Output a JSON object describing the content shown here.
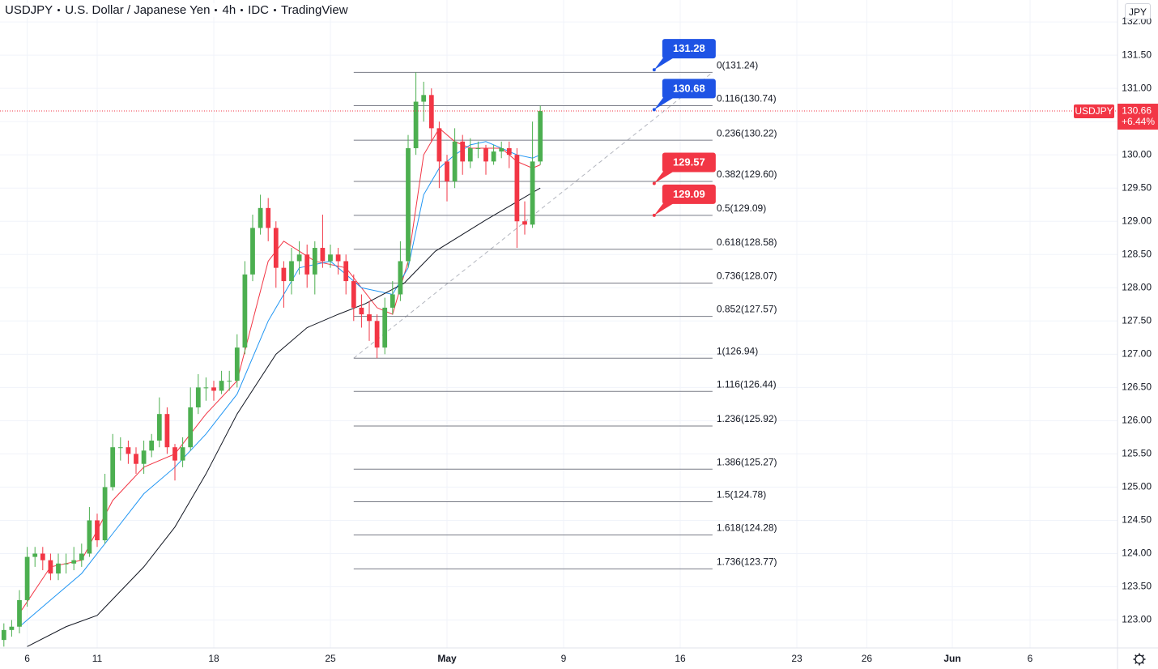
{
  "chart_data": {
    "type": "candlestick",
    "header": [
      "USDJPY",
      "U.S. Dollar / Japanese Yen",
      "4h",
      "IDC",
      "TradingView"
    ],
    "currency": "JPY",
    "last": 130.66,
    "change": "+6.44%",
    "up_color": "#4caf50",
    "down_color": "#f23645",
    "grid": true,
    "xlim": [
      -1,
      286.5
    ],
    "ylim": [
      122.58,
      132.33
    ],
    "xticks": [
      6,
      {
        "value": 24,
        "label": "11"
      },
      {
        "value": 54,
        "label": "18"
      },
      {
        "value": 84,
        "label": "25"
      },
      {
        "value": 114,
        "label": "May"
      },
      {
        "value": 144,
        "label": "9"
      },
      {
        "value": 174,
        "label": "16"
      },
      {
        "value": 204,
        "label": "23"
      },
      {
        "value": 222,
        "label": "26"
      },
      {
        "value": 244,
        "label": "Jun"
      },
      {
        "value": 264,
        "label": "6"
      }
    ],
    "yticks": [
      {
        "value": 123,
        "label": "123.00"
      },
      {
        "value": 123.5,
        "label": "123.50"
      },
      {
        "value": 124,
        "label": "124.00"
      },
      {
        "value": 124.5,
        "label": "124.50"
      },
      {
        "value": 125,
        "label": "125.00"
      },
      {
        "value": 125.5,
        "label": "125.50"
      },
      {
        "value": 126,
        "label": "126.00"
      },
      {
        "value": 126.5,
        "label": "126.50"
      },
      {
        "value": 127,
        "label": "127.00"
      },
      {
        "value": 127.5,
        "label": "127.50"
      },
      {
        "value": 128,
        "label": "128.00"
      },
      {
        "value": 128.5,
        "label": "128.50"
      },
      {
        "value": 129,
        "label": "129.00"
      },
      {
        "value": 129.5,
        "label": "129.50"
      },
      {
        "value": 130,
        "label": "130.00"
      },
      {
        "value": 130.5,
        "label": "130.50"
      },
      {
        "value": 131,
        "label": "131.00"
      },
      {
        "value": 131.5,
        "label": "131.50"
      },
      {
        "value": 132,
        "label": "132.00"
      }
    ],
    "candles": {
      "x": [
        0,
        2,
        4,
        6,
        8,
        10,
        12,
        14,
        16,
        18,
        20,
        22,
        24,
        26,
        28,
        30,
        32,
        34,
        36,
        38,
        40,
        42,
        44,
        46,
        48,
        50,
        52,
        54,
        56,
        58,
        60,
        62,
        64,
        66,
        68,
        70,
        72,
        74,
        76,
        78,
        80,
        82,
        84,
        86,
        88,
        90,
        92,
        94,
        96,
        98,
        100,
        102,
        104,
        106,
        108,
        110,
        112,
        114,
        116,
        118,
        120,
        122,
        124,
        126,
        128,
        130,
        132,
        134,
        136,
        138
      ],
      "open": [
        122.7,
        122.85,
        122.9,
        123.3,
        123.95,
        124.0,
        123.9,
        123.7,
        123.85,
        123.85,
        123.9,
        124.0,
        124.5,
        124.2,
        125.0,
        125.6,
        125.6,
        125.5,
        125.35,
        125.55,
        125.7,
        126.1,
        125.6,
        125.4,
        125.6,
        126.2,
        126.5,
        126.5,
        126.45,
        126.6,
        126.6,
        127.1,
        128.2,
        128.9,
        129.2,
        128.9,
        128.3,
        128.1,
        128.4,
        128.5,
        128.2,
        128.6,
        128.4,
        128.5,
        128.4,
        128.1,
        127.7,
        127.6,
        127.5,
        127.1,
        127.7,
        127.9,
        128.4,
        130.1,
        130.8,
        130.9,
        130.4,
        129.9,
        129.6,
        130.2,
        129.9,
        130.1,
        130.1,
        129.9,
        130.05,
        130.1,
        130.0,
        129.0,
        128.95,
        129.9
      ],
      "high": [
        122.95,
        123.0,
        123.45,
        124.1,
        124.1,
        124.1,
        124.0,
        124.0,
        124.0,
        124.1,
        124.15,
        124.7,
        124.6,
        125.2,
        125.8,
        125.75,
        125.7,
        125.6,
        125.7,
        125.8,
        126.35,
        126.2,
        125.65,
        125.75,
        126.5,
        126.7,
        126.65,
        126.6,
        126.75,
        126.75,
        127.3,
        128.4,
        129.1,
        129.4,
        129.35,
        129.0,
        128.4,
        128.6,
        128.7,
        128.65,
        128.7,
        129.1,
        128.65,
        128.6,
        128.5,
        128.2,
        127.9,
        127.8,
        127.6,
        127.85,
        128.1,
        128.7,
        130.3,
        131.24,
        131.1,
        131.0,
        130.5,
        130.0,
        130.4,
        130.3,
        130.25,
        130.2,
        130.15,
        130.15,
        130.2,
        130.2,
        130.1,
        129.3,
        130.5,
        130.74
      ],
      "low": [
        122.6,
        122.75,
        122.8,
        123.2,
        123.8,
        123.75,
        123.6,
        123.6,
        123.7,
        123.75,
        123.8,
        123.95,
        124.1,
        124.15,
        124.95,
        125.4,
        125.35,
        125.2,
        125.2,
        125.45,
        125.6,
        125.5,
        125.1,
        125.3,
        125.55,
        126.1,
        126.3,
        126.3,
        126.4,
        126.45,
        126.5,
        127.0,
        128.1,
        128.8,
        128.7,
        128.0,
        127.7,
        127.9,
        128.2,
        128.0,
        127.9,
        128.3,
        128.3,
        128.2,
        127.9,
        127.5,
        127.4,
        127.2,
        126.94,
        127.0,
        127.6,
        127.8,
        128.3,
        130.0,
        130.5,
        130.2,
        129.5,
        129.3,
        129.5,
        129.7,
        129.8,
        129.95,
        129.7,
        129.85,
        129.95,
        129.8,
        128.6,
        128.8,
        128.9,
        129.85
      ],
      "close": [
        122.85,
        122.9,
        123.3,
        123.95,
        124.0,
        123.9,
        123.7,
        123.85,
        123.85,
        123.9,
        124.0,
        124.5,
        124.2,
        125.0,
        125.6,
        125.6,
        125.5,
        125.35,
        125.55,
        125.7,
        126.1,
        125.6,
        125.4,
        125.6,
        126.2,
        126.5,
        126.5,
        126.45,
        126.6,
        126.6,
        127.1,
        128.2,
        128.9,
        129.2,
        128.9,
        128.3,
        128.1,
        128.4,
        128.5,
        128.2,
        128.6,
        128.4,
        128.5,
        128.4,
        128.1,
        127.7,
        127.6,
        127.5,
        127.1,
        127.7,
        127.9,
        128.4,
        130.1,
        130.8,
        130.9,
        130.4,
        129.9,
        129.6,
        130.2,
        129.9,
        130.1,
        130.1,
        129.9,
        130.05,
        130.1,
        130.0,
        129.0,
        128.95,
        129.9,
        130.66
      ]
    },
    "series": [
      {
        "color": "#f23645",
        "x": [
          4,
          12,
          20,
          28,
          36,
          44,
          52,
          60,
          68,
          72,
          80,
          88,
          96,
          100,
          104,
          108,
          112,
          116,
          120,
          124,
          128,
          132,
          136,
          138
        ],
        "values": [
          123.1,
          123.8,
          123.9,
          124.8,
          125.3,
          125.5,
          126.1,
          126.6,
          128.4,
          128.7,
          128.4,
          128.3,
          127.7,
          127.6,
          128.4,
          130.0,
          130.4,
          130.2,
          130.1,
          130.1,
          130.1,
          129.9,
          129.8,
          129.85
        ]
      },
      {
        "color": "#2196f3",
        "x": [
          4,
          12,
          20,
          28,
          36,
          44,
          52,
          60,
          68,
          76,
          84,
          92,
          100,
          104,
          108,
          112,
          116,
          120,
          124,
          128,
          132,
          136,
          138
        ],
        "values": [
          122.9,
          123.3,
          123.7,
          124.3,
          124.9,
          125.3,
          125.8,
          126.4,
          127.5,
          128.3,
          128.4,
          128.0,
          127.9,
          128.3,
          129.4,
          129.8,
          130.0,
          130.15,
          130.2,
          130.1,
          130.0,
          129.95,
          130.0
        ]
      },
      {
        "color": "#131722",
        "x": [
          6,
          16,
          24,
          36,
          44,
          52,
          60,
          70,
          78,
          86,
          93,
          103,
          111,
          124,
          138
        ],
        "values": [
          122.6,
          122.9,
          123.07,
          123.8,
          124.4,
          125.2,
          126.1,
          127.0,
          127.4,
          127.6,
          127.76,
          128.07,
          128.55,
          129.02,
          129.5
        ]
      }
    ],
    "fib": {
      "x": [
        90,
        182.3
      ],
      "trend": [
        126.94,
        131.24
      ],
      "levels": [
        {
          "label": "0(131.24)",
          "value": 131.24
        },
        {
          "label": "0.116(130.74)",
          "value": 130.74
        },
        {
          "label": "0.236(130.22)",
          "value": 130.22
        },
        {
          "label": "0.382(129.60)",
          "value": 129.6
        },
        {
          "label": "0.5(129.09)",
          "value": 129.09
        },
        {
          "label": "0.618(128.58)",
          "value": 128.58
        },
        {
          "label": "0.736(128.07)",
          "value": 128.07
        },
        {
          "label": "0.852(127.57)",
          "value": 127.57
        },
        {
          "label": "1(126.94)",
          "value": 126.94
        },
        {
          "label": "1.116(126.44)",
          "value": 126.44
        },
        {
          "label": "1.236(125.92)",
          "value": 125.92
        },
        {
          "label": "1.386(125.27)",
          "value": 125.27
        },
        {
          "label": "1.5(124.78)",
          "value": 124.78
        },
        {
          "label": "1.618(124.28)",
          "value": 124.28
        },
        {
          "label": "1.736(123.77)",
          "value": 123.77
        }
      ]
    },
    "price_labels": {
      "x": 167.3,
      "items": [
        {
          "value": 131.28,
          "color": "#1e53e5"
        },
        {
          "value": 130.68,
          "color": "#1e53e5"
        },
        {
          "value": 129.57,
          "color": "#f23645"
        },
        {
          "value": 129.09,
          "color": "#f23645"
        }
      ]
    }
  }
}
